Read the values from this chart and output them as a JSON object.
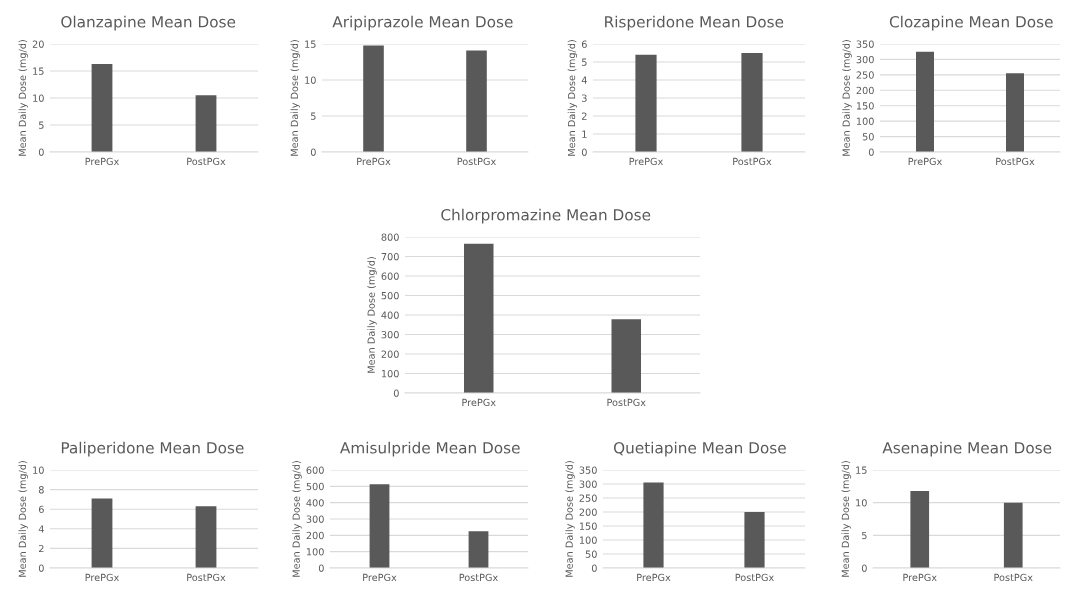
{
  "chart_data": [
    {
      "type": "bar",
      "title": "Olanzapine Mean Dose",
      "ylabel": "Mean Daily Dose (mg/d)",
      "categories": [
        "PrePGx",
        "PostPGx"
      ],
      "values": [
        16.3,
        10.5
      ],
      "color": "#595959",
      "ylim": [
        0,
        20
      ],
      "yticks": [
        0,
        5,
        10,
        15,
        20
      ],
      "grid": "y"
    },
    {
      "type": "bar",
      "title": "Aripiprazole Mean Dose",
      "ylabel": "Mean Daily Dose (mg/d)",
      "categories": [
        "PrePGx",
        "PostPGx"
      ],
      "values": [
        14.8,
        14.1
      ],
      "color": "#595959",
      "ylim": [
        0,
        15
      ],
      "yticks": [
        0,
        5,
        10,
        15
      ],
      "grid": "y"
    },
    {
      "type": "bar",
      "title": "Risperidone Mean Dose",
      "ylabel": "Mean Daily Dose (mg/d)",
      "categories": [
        "PrePGx",
        "PostPGx"
      ],
      "values": [
        5.4,
        5.5
      ],
      "color": "#595959",
      "ylim": [
        0,
        6
      ],
      "yticks": [
        0,
        1,
        2,
        3,
        4,
        5,
        6
      ],
      "grid": "y"
    },
    {
      "type": "bar",
      "title": "Clozapine Mean Dose",
      "ylabel": "Mean Daily Dose (mg/d)",
      "categories": [
        "PrePGx",
        "PostPGx"
      ],
      "values": [
        325,
        255
      ],
      "color": "#595959",
      "ylim": [
        0,
        350
      ],
      "yticks": [
        0,
        50,
        100,
        150,
        200,
        250,
        300,
        350
      ],
      "grid": "y"
    },
    {
      "type": "bar",
      "title": "Chlorpromazine Mean Dose",
      "ylabel": "Mean Daily Dose (mg/d)",
      "categories": [
        "PrePGx",
        "PostPGx"
      ],
      "values": [
        765,
        378
      ],
      "color": "#595959",
      "ylim": [
        0,
        800
      ],
      "yticks": [
        0,
        100,
        200,
        300,
        400,
        500,
        600,
        700,
        800
      ],
      "grid": "y"
    },
    {
      "type": "bar",
      "title": "Paliperidone Mean Dose",
      "ylabel": "Mean Daily Dose (mg/d)",
      "categories": [
        "PrePGx",
        "PostPGx"
      ],
      "values": [
        7.1,
        6.3
      ],
      "color": "#595959",
      "ylim": [
        0,
        10
      ],
      "yticks": [
        0,
        2,
        4,
        6,
        8,
        10
      ],
      "grid": "y"
    },
    {
      "type": "bar",
      "title": "Amisulpride Mean Dose",
      "ylabel": "Mean Daily Dose (mg/d)",
      "categories": [
        "PrePGx",
        "PostPGx"
      ],
      "values": [
        513,
        225
      ],
      "color": "#595959",
      "ylim": [
        0,
        600
      ],
      "yticks": [
        0,
        100,
        200,
        300,
        400,
        500,
        600
      ],
      "grid": "y"
    },
    {
      "type": "bar",
      "title": "Quetiapine Mean Dose",
      "ylabel": "Mean Daily Dose (mg/d)",
      "categories": [
        "PrePGx",
        "PostPGx"
      ],
      "values": [
        305,
        200
      ],
      "color": "#595959",
      "ylim": [
        0,
        350
      ],
      "yticks": [
        0,
        50,
        100,
        150,
        200,
        250,
        300,
        350
      ],
      "grid": "y"
    },
    {
      "type": "bar",
      "title": "Asenapine Mean Dose",
      "ylabel": "Mean Daily Dose (mg/d)",
      "categories": [
        "PrePGx",
        "PostPGx"
      ],
      "values": [
        11.8,
        10.0
      ],
      "color": "#595959",
      "ylim": [
        0,
        15
      ],
      "yticks": [
        0,
        5,
        10,
        15
      ],
      "grid": "y"
    }
  ]
}
